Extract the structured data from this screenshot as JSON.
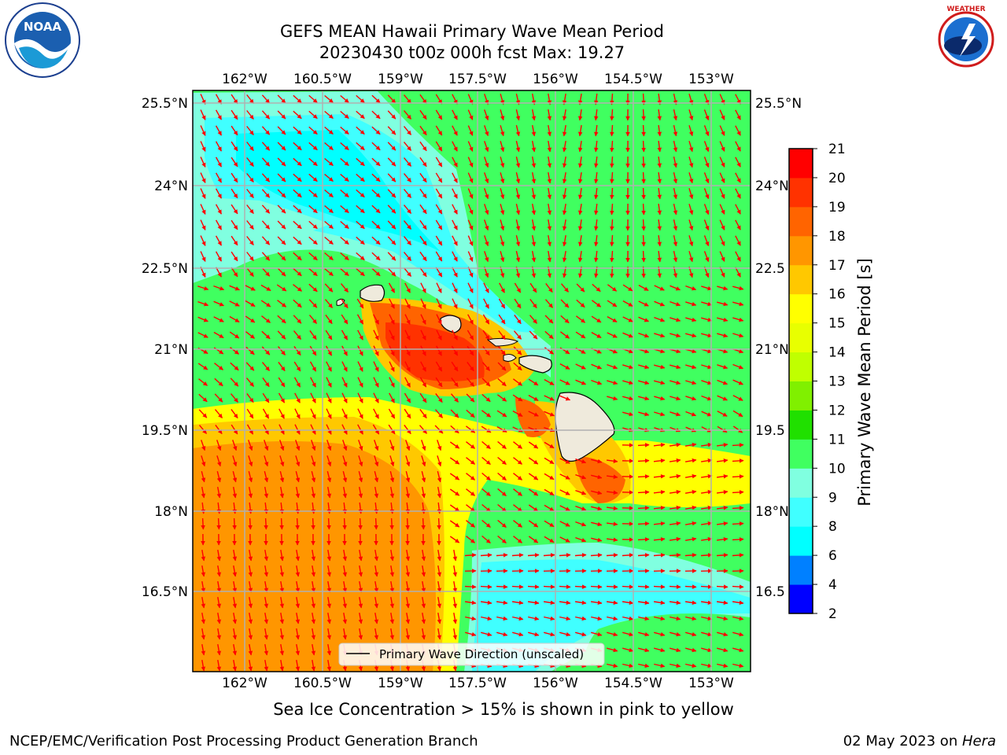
{
  "title_line1": "GEFS MEAN Hawaii Primary Wave Mean Period",
  "title_line2": "20230430 t00z 000h fcst   Max: 19.27",
  "logos": {
    "left": "noaa-logo",
    "right": "national-weather-service-logo",
    "left_text": "NOAA",
    "right_text": "NATIONAL WEATHER SERVICE"
  },
  "map": {
    "lon_ticks": [
      "162°W",
      "160.5°W",
      "159°W",
      "157.5°W",
      "156°W",
      "154.5°W",
      "153°W"
    ],
    "lat_ticks": [
      "25.5°N",
      "24°N",
      "22.5°N",
      "21°N",
      "19.5°N",
      "18°N",
      "16.5°N"
    ],
    "lat_ticks_right": [
      "25.5°N",
      "24°N",
      "22.5",
      "21°N",
      "19.5",
      "18°N",
      "16.5"
    ],
    "legend_label": "Primary Wave Direction (unscaled)",
    "arrow_color": "#ff0000",
    "land_color": "#efeadc"
  },
  "colorbar": {
    "label": "Primary Wave Mean Period [s]",
    "ticks": [
      "2",
      "4",
      "6",
      "8",
      "9",
      "10",
      "11",
      "12",
      "13",
      "14",
      "15",
      "16",
      "17",
      "18",
      "19",
      "20",
      "21"
    ],
    "colors": [
      "#0000ff",
      "#0080ff",
      "#00ffff",
      "#40ffff",
      "#80ffe0",
      "#40ff60",
      "#20e000",
      "#80f000",
      "#c0ff00",
      "#e8ff00",
      "#ffff00",
      "#ffc800",
      "#ff9600",
      "#ff6400",
      "#ff3200",
      "#ff0000"
    ]
  },
  "ice_note": "Sea Ice Concentration > 15% is shown in pink to yellow",
  "footer_left": "NCEP/EMC/Verification Post Processing Product Generation Branch",
  "footer_date": "02 May 2023 on ",
  "footer_machine": "Hera"
}
